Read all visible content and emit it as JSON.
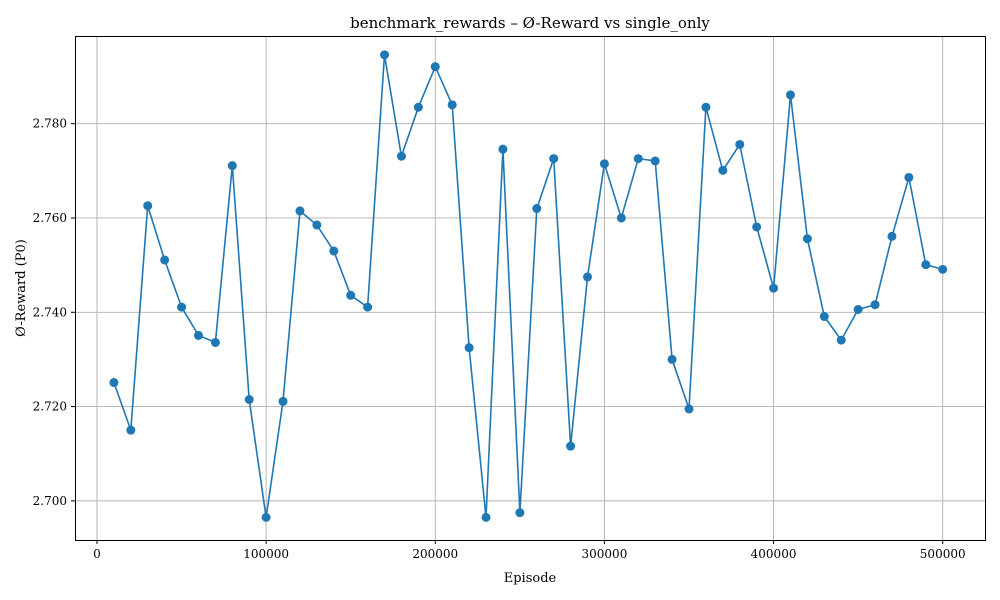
{
  "chart_data": {
    "type": "line",
    "title": "benchmark_rewards – Ø-Reward vs single_only",
    "xlabel": "Episode",
    "ylabel": "Ø-Reward (P0)",
    "xlim": [
      -13000,
      525000
    ],
    "ylim": [
      2.6917,
      2.7986
    ],
    "xticks": [
      0,
      100000,
      200000,
      300000,
      400000,
      500000
    ],
    "xtick_labels": [
      "0",
      "100000",
      "200000",
      "300000",
      "400000",
      "500000"
    ],
    "yticks": [
      2.7,
      2.72,
      2.74,
      2.76,
      2.78
    ],
    "ytick_labels": [
      "2.700",
      "2.720",
      "2.740",
      "2.760",
      "2.780"
    ],
    "grid": true,
    "marker": "circle",
    "color": "#1f77b4",
    "x": [
      10000,
      20000,
      30000,
      40000,
      50000,
      60000,
      70000,
      80000,
      90000,
      100000,
      110000,
      120000,
      130000,
      140000,
      150000,
      160000,
      170000,
      180000,
      190000,
      200000,
      210000,
      220000,
      230000,
      240000,
      250000,
      260000,
      270000,
      280000,
      290000,
      300000,
      310000,
      320000,
      330000,
      340000,
      350000,
      360000,
      370000,
      380000,
      390000,
      400000,
      410000,
      420000,
      430000,
      440000,
      450000,
      460000,
      470000,
      480000,
      490000,
      500000
    ],
    "values": [
      2.7251,
      2.715,
      2.7626,
      2.7511,
      2.7411,
      2.7351,
      2.7336,
      2.7711,
      2.7215,
      2.6965,
      2.7211,
      2.7615,
      2.7585,
      2.753,
      2.7436,
      2.7411,
      2.7946,
      2.7731,
      2.7835,
      2.7921,
      2.784,
      2.7325,
      2.6965,
      2.7746,
      2.6975,
      2.762,
      2.7726,
      2.7116,
      2.7475,
      2.7715,
      2.76,
      2.7726,
      2.7721,
      2.73,
      2.7195,
      2.7835,
      2.7701,
      2.7756,
      2.7581,
      2.7451,
      2.7861,
      2.7556,
      2.7391,
      2.7341,
      2.7406,
      2.7416,
      2.7561,
      2.7686,
      2.7501,
      2.7491
    ]
  }
}
